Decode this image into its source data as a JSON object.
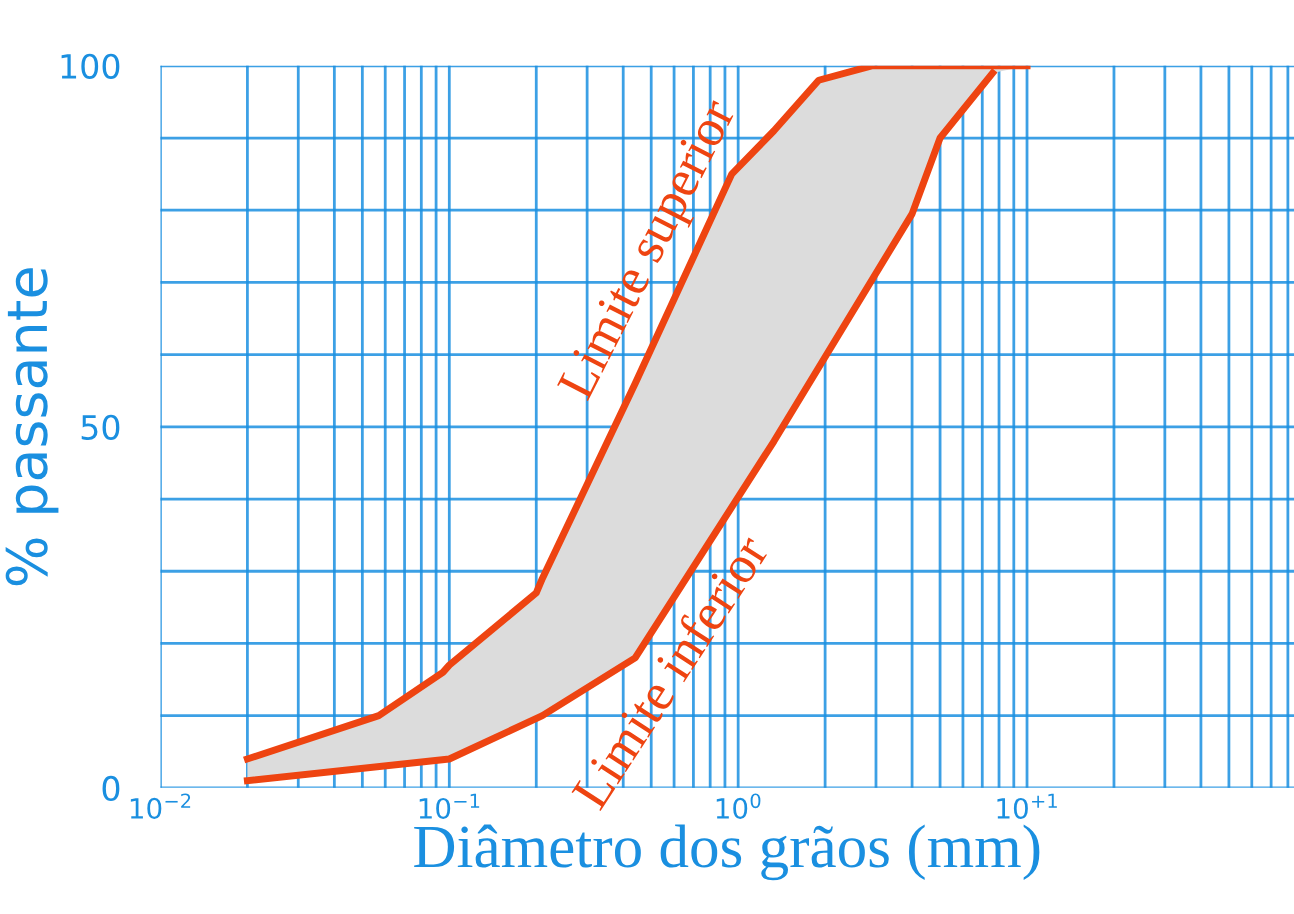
{
  "chart_data": {
    "type": "line",
    "xlabel": "Diâmetro dos grãos (mm)",
    "ylabel": "% passante",
    "log": "x",
    "grid": true,
    "marker": "none",
    "line_style": "solid",
    "legend": false,
    "xlim": [
      0.01,
      84
    ],
    "ylim": [
      0,
      100
    ],
    "xticks": [
      {
        "value": 0.01,
        "label": "10$^{−2}$"
      },
      {
        "value": 0.02,
        "label": null
      },
      {
        "value": 0.03,
        "label": null
      },
      {
        "value": 0.04,
        "label": null
      },
      {
        "value": 0.05,
        "label": null
      },
      {
        "value": 0.06,
        "label": null
      },
      {
        "value": 0.07,
        "label": null
      },
      {
        "value": 0.08,
        "label": null
      },
      {
        "value": 0.09,
        "label": null
      },
      {
        "value": 0.1,
        "label": "10$^{−1}$"
      },
      {
        "value": 0.2,
        "label": null
      },
      {
        "value": 0.3,
        "label": null
      },
      {
        "value": 0.4,
        "label": null
      },
      {
        "value": 0.5,
        "label": null
      },
      {
        "value": 0.6,
        "label": null
      },
      {
        "value": 0.7,
        "label": null
      },
      {
        "value": 0.8,
        "label": null
      },
      {
        "value": 0.9,
        "label": null
      },
      {
        "value": 1,
        "label": "10$^{0}$"
      },
      {
        "value": 2,
        "label": null
      },
      {
        "value": 3,
        "label": null
      },
      {
        "value": 4,
        "label": null
      },
      {
        "value": 5,
        "label": null
      },
      {
        "value": 6,
        "label": null
      },
      {
        "value": 7,
        "label": null
      },
      {
        "value": 8,
        "label": null
      },
      {
        "value": 9,
        "label": null
      },
      {
        "value": 10,
        "label": "10$^{+1}$"
      },
      {
        "value": 20,
        "label": null
      },
      {
        "value": 30,
        "label": null
      },
      {
        "value": 40,
        "label": null
      },
      {
        "value": 50,
        "label": null
      },
      {
        "value": 60,
        "label": null
      },
      {
        "value": 70,
        "label": null
      },
      {
        "value": 80,
        "label": null
      }
    ],
    "yticks": [
      0,
      {
        "value": 10,
        "label": null
      },
      {
        "value": 20,
        "label": null
      },
      {
        "value": 30,
        "label": null
      },
      {
        "value": 40,
        "label": null
      },
      50,
      {
        "value": 60,
        "label": null
      },
      {
        "value": 70,
        "label": null
      },
      {
        "value": 80,
        "label": null
      },
      {
        "value": 90,
        "label": null
      },
      100
    ],
    "series": [
      {
        "name": "Limite superior",
        "color": "#ee4411",
        "x": [
          0.02,
          0.057,
          0.095,
          0.1,
          0.2,
          0.21,
          0.44,
          0.95,
          1.33,
          1.9,
          2.9,
          4,
          5,
          7.6,
          10
        ],
        "values": [
          4,
          10,
          16,
          17,
          27,
          29,
          56,
          85,
          91,
          98,
          100,
          100,
          100,
          100,
          100
        ],
        "lower": [
          1,
          3,
          3.9,
          4,
          9.6,
          10,
          18,
          39,
          48,
          58,
          70,
          79.5,
          90,
          99,
          100
        ],
        "upper": [
          4,
          10,
          16,
          17,
          27,
          29,
          56,
          85,
          91,
          98,
          100,
          100,
          100,
          100,
          100
        ]
      },
      {
        "name": "Limite inferior",
        "color": "#ee4411",
        "x": [
          0.02,
          0.1,
          0.21,
          0.44,
          1.33,
          4.0,
          5.0,
          7.6
        ],
        "values": [
          1,
          4,
          10,
          18,
          48,
          79.5,
          90,
          99
        ]
      }
    ]
  }
}
